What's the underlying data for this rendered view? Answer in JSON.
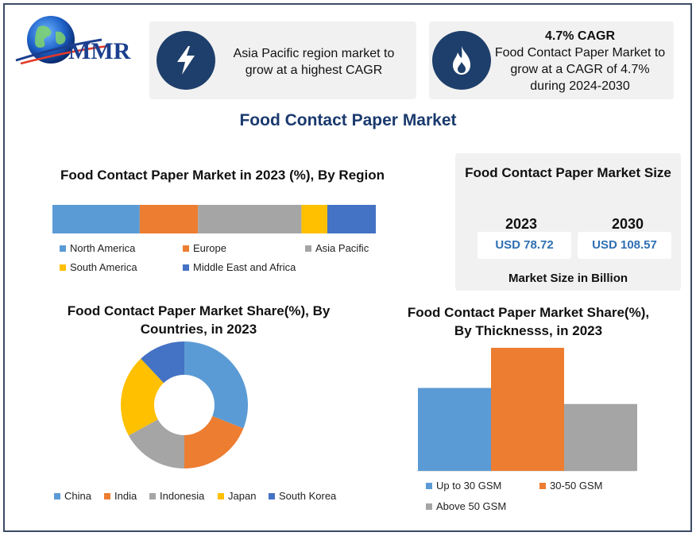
{
  "logo": {
    "text": "MMR"
  },
  "highlights": [
    {
      "icon": "lightning-icon",
      "text": "Asia Pacific region market to grow at a highest CAGR"
    },
    {
      "icon": "flame-icon",
      "title": "4.7% CAGR",
      "text": "Food Contact Paper Market to grow at a CAGR of 4.7% during 2024-2030"
    }
  ],
  "main_title": "Food Contact Paper Market",
  "market_size": {
    "title": "Food Contact Paper Market Size",
    "years": [
      "2023",
      "2030"
    ],
    "values": [
      "USD 78.72",
      "USD 108.57"
    ],
    "unit_label": "Market Size in Billion"
  },
  "colors": {
    "blue": "#5b9bd5",
    "orange": "#ed7d31",
    "gray": "#a5a5a5",
    "yellow": "#ffc000",
    "darkblue": "#4472c4",
    "navy": "#1e3f6b",
    "title": "#1a3a6e"
  },
  "chart_data": [
    {
      "type": "bar",
      "orientation": "horizontal-stacked-100",
      "title": "Food Contact Paper Market in 2023 (%), By Region",
      "series": [
        {
          "name": "North America",
          "values": [
            27
          ],
          "color": "#5b9bd5"
        },
        {
          "name": "Europe",
          "values": [
            18
          ],
          "color": "#ed7d31"
        },
        {
          "name": "Asia Pacific",
          "values": [
            32
          ],
          "color": "#a5a5a5"
        },
        {
          "name": "South America",
          "values": [
            8
          ],
          "color": "#ffc000"
        },
        {
          "name": "Middle East and Africa",
          "values": [
            15
          ],
          "color": "#4472c4"
        }
      ],
      "legend": "bottom"
    },
    {
      "type": "pie",
      "variant": "donut",
      "title": "Food Contact Paper Market Share(%), By Countries, in 2023",
      "categories": [
        "China",
        "India",
        "Indonesia",
        "Japan",
        "South Korea"
      ],
      "values": [
        31,
        19,
        17,
        21,
        12
      ],
      "colors": [
        "#5b9bd5",
        "#ed7d31",
        "#a5a5a5",
        "#ffc000",
        "#4472c4"
      ],
      "legend": "bottom"
    },
    {
      "type": "bar",
      "title": "Food Contact Paper Market Share(%), By Thicknesss, in 2023",
      "categories": [
        "Up to 30 GSM",
        "30-50 GSM",
        "Above 50 GSM"
      ],
      "values": [
        31,
        46,
        25
      ],
      "colors": [
        "#5b9bd5",
        "#ed7d31",
        "#a5a5a5"
      ],
      "ylim": [
        0,
        46
      ],
      "grid": false,
      "legend": "bottom"
    }
  ]
}
